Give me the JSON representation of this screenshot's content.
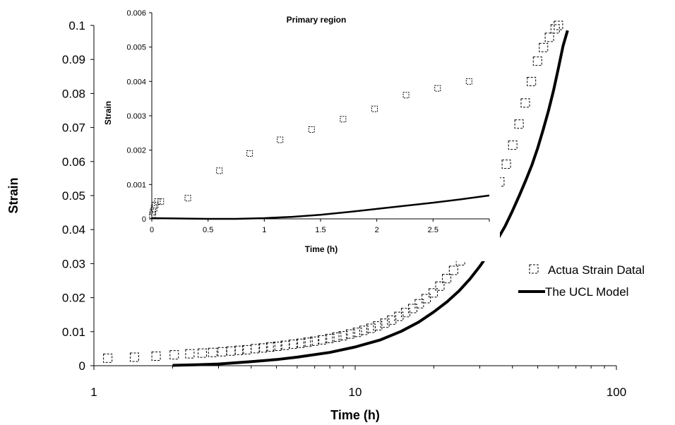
{
  "chart_data": [
    {
      "type": "scatter",
      "xlabel": "Time (h)",
      "ylabel": "Strain",
      "xscale": "log",
      "xlim": [
        1,
        100
      ],
      "ylim": [
        0,
        0.1
      ],
      "xticks": [
        1,
        10,
        100
      ],
      "xtick_labels": [
        "1",
        "10",
        "100"
      ],
      "yticks": [
        0,
        0.01,
        0.02,
        0.03,
        0.04,
        0.05,
        0.06,
        0.07,
        0.08,
        0.09,
        0.1
      ],
      "ytick_labels": [
        "0",
        "0.01",
        "0.02",
        "0.03",
        "0.04",
        "0.05",
        "0.06",
        "0.07",
        "0.08",
        "0.09",
        "0.1"
      ],
      "grid": false,
      "legend": {
        "position": "right",
        "entries": [
          "Actua Strain Datal",
          "The UCL Model"
        ]
      },
      "series": [
        {
          "name": "Actua Strain Datal",
          "marker": "dashed-square",
          "color": "#000000",
          "x": [
            1.13,
            1.43,
            1.73,
            2.03,
            2.33,
            2.6,
            2.85,
            3.1,
            3.35,
            3.6,
            3.85,
            4.15,
            4.45,
            4.75,
            5.05,
            5.4,
            5.8,
            6.2,
            6.6,
            7.0,
            7.5,
            8.0,
            8.5,
            9.0,
            9.6,
            10.2,
            10.8,
            11.5,
            12.2,
            13.0,
            13.8,
            14.7,
            15.6,
            16.6,
            17.6,
            18.7,
            19.9,
            21.1,
            22.4,
            23.8,
            25.3,
            26.8,
            28.4,
            30.1,
            31.9,
            33.8,
            35.8,
            37.9,
            40.1,
            42.4,
            44.8,
            47.3,
            49.9,
            52.6,
            55.4,
            58.3,
            60.0
          ],
          "y": [
            0.0022,
            0.0025,
            0.0028,
            0.0032,
            0.0035,
            0.0037,
            0.0039,
            0.0041,
            0.0043,
            0.0045,
            0.0047,
            0.005,
            0.0052,
            0.0055,
            0.0057,
            0.006,
            0.0063,
            0.0066,
            0.0069,
            0.0072,
            0.0076,
            0.008,
            0.0084,
            0.0088,
            0.0093,
            0.0098,
            0.0104,
            0.011,
            0.0117,
            0.0125,
            0.0134,
            0.0145,
            0.0156,
            0.0168,
            0.0182,
            0.0197,
            0.0214,
            0.0234,
            0.0256,
            0.028,
            0.0308,
            0.0338,
            0.037,
            0.0405,
            0.0445,
            0.049,
            0.054,
            0.0592,
            0.0648,
            0.071,
            0.0772,
            0.0835,
            0.0895,
            0.0935,
            0.0965,
            0.099,
            0.1
          ]
        },
        {
          "name": "The UCL Model",
          "type": "line",
          "color": "#000000",
          "x": [
            2.0,
            2.5,
            3.0,
            4.0,
            5.0,
            6.0,
            8.0,
            10.0,
            12.5,
            15.0,
            17.5,
            20.0,
            22.5,
            25.0,
            27.5,
            30.0,
            32.5,
            35.0,
            37.5,
            40.0,
            42.5,
            45.0,
            47.5,
            50.0,
            52.5,
            55.0,
            57.5,
            60.0,
            62.5,
            65.0
          ],
          "y": [
            0.0001,
            0.0003,
            0.0005,
            0.0012,
            0.0018,
            0.0025,
            0.0039,
            0.0055,
            0.0076,
            0.0101,
            0.0128,
            0.0158,
            0.0188,
            0.022,
            0.0255,
            0.0292,
            0.033,
            0.037,
            0.041,
            0.0455,
            0.05,
            0.0545,
            0.059,
            0.064,
            0.0695,
            0.075,
            0.081,
            0.0875,
            0.094,
            0.0985
          ]
        }
      ]
    },
    {
      "type": "scatter",
      "title": "Primary region",
      "xlabel": "Time (h)",
      "ylabel": "Strain",
      "xlim": [
        0,
        3
      ],
      "ylim": [
        0,
        0.006
      ],
      "xticks": [
        0,
        0.5,
        1,
        1.5,
        2,
        2.5
      ],
      "xtick_labels": [
        "0",
        "0.5",
        "1",
        "1.5",
        "2",
        "2.5"
      ],
      "yticks": [
        0,
        0.001,
        0.002,
        0.003,
        0.004,
        0.005,
        0.006
      ],
      "ytick_labels": [
        "0",
        "0.001",
        "0.002",
        "0.003",
        "0.004",
        "0.005",
        "0.006"
      ],
      "grid": false,
      "series": [
        {
          "name": "Actua Strain Datal",
          "marker": "dashed-square",
          "color": "#000000",
          "x": [
            0.005,
            0.01,
            0.02,
            0.03,
            0.05,
            0.08,
            0.32,
            0.6,
            0.87,
            1.14,
            1.42,
            1.7,
            1.98,
            2.26,
            2.54,
            2.82
          ],
          "y": [
            0.0001,
            0.0002,
            0.0003,
            0.0004,
            0.0005,
            0.0005,
            0.0006,
            0.0014,
            0.0019,
            0.0023,
            0.0026,
            0.0029,
            0.0032,
            0.0036,
            0.0038,
            0.004
          ]
        },
        {
          "name": "The UCL Model",
          "type": "line",
          "color": "#000000",
          "x": [
            0,
            0.25,
            0.5,
            0.75,
            1.0,
            1.25,
            1.5,
            1.75,
            2.0,
            2.25,
            2.5,
            2.75,
            3.0
          ],
          "y": [
            2e-05,
            1e-05,
            0.0,
            0.0,
            2e-05,
            6e-05,
            0.00012,
            0.0002,
            0.00029,
            0.00038,
            0.00047,
            0.00057,
            0.00068
          ]
        }
      ]
    }
  ]
}
